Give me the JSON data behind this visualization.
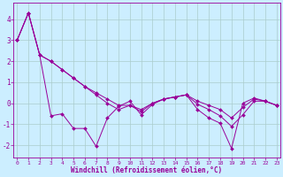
{
  "xlabel": "Windchill (Refroidissement éolien,°C)",
  "bg_color": "#cceeff",
  "grid_color": "#aacccc",
  "line_color": "#990099",
  "xticks": [
    0,
    1,
    2,
    3,
    4,
    5,
    6,
    7,
    8,
    9,
    10,
    11,
    12,
    13,
    14,
    15,
    16,
    17,
    18,
    19,
    20,
    21,
    22,
    23
  ],
  "yticks": [
    -2,
    -1,
    0,
    1,
    2,
    3,
    4
  ],
  "xlim": [
    -0.3,
    23.3
  ],
  "ylim": [
    -2.6,
    4.8
  ],
  "line1_x": [
    0,
    1,
    2,
    3,
    4,
    5,
    6,
    7,
    8,
    9,
    10,
    11,
    12,
    13,
    14,
    15,
    16,
    17,
    18,
    19,
    20,
    21,
    22,
    23
  ],
  "line1_y": [
    3.0,
    4.3,
    2.3,
    -0.6,
    -0.5,
    -1.2,
    -1.2,
    -2.05,
    -0.7,
    -0.15,
    0.1,
    -0.55,
    -0.05,
    0.2,
    0.3,
    0.4,
    -0.3,
    -0.7,
    -0.95,
    -2.15,
    0.0,
    0.25,
    0.1,
    -0.1
  ],
  "line2_x": [
    0,
    1,
    2,
    3,
    4,
    5,
    6,
    7,
    8,
    9,
    10,
    11,
    12,
    13,
    14,
    15,
    16,
    17,
    18,
    19,
    20,
    21,
    22,
    23
  ],
  "line2_y": [
    3.0,
    4.3,
    2.3,
    2.0,
    1.6,
    1.2,
    0.8,
    0.5,
    0.2,
    -0.1,
    -0.1,
    -0.3,
    0.0,
    0.2,
    0.3,
    0.4,
    0.1,
    -0.1,
    -0.3,
    -0.7,
    -0.2,
    0.2,
    0.1,
    -0.1
  ],
  "line3_x": [
    0,
    1,
    2,
    3,
    4,
    5,
    6,
    7,
    8,
    9,
    10,
    11,
    12,
    13,
    14,
    15,
    16,
    17,
    18,
    19,
    20,
    21,
    22,
    23
  ],
  "line3_y": [
    3.0,
    4.3,
    2.3,
    2.0,
    1.6,
    1.2,
    0.8,
    0.4,
    0.0,
    -0.3,
    -0.1,
    -0.4,
    0.0,
    0.2,
    0.3,
    0.4,
    -0.05,
    -0.3,
    -0.6,
    -1.1,
    -0.55,
    0.1,
    0.1,
    -0.1
  ]
}
